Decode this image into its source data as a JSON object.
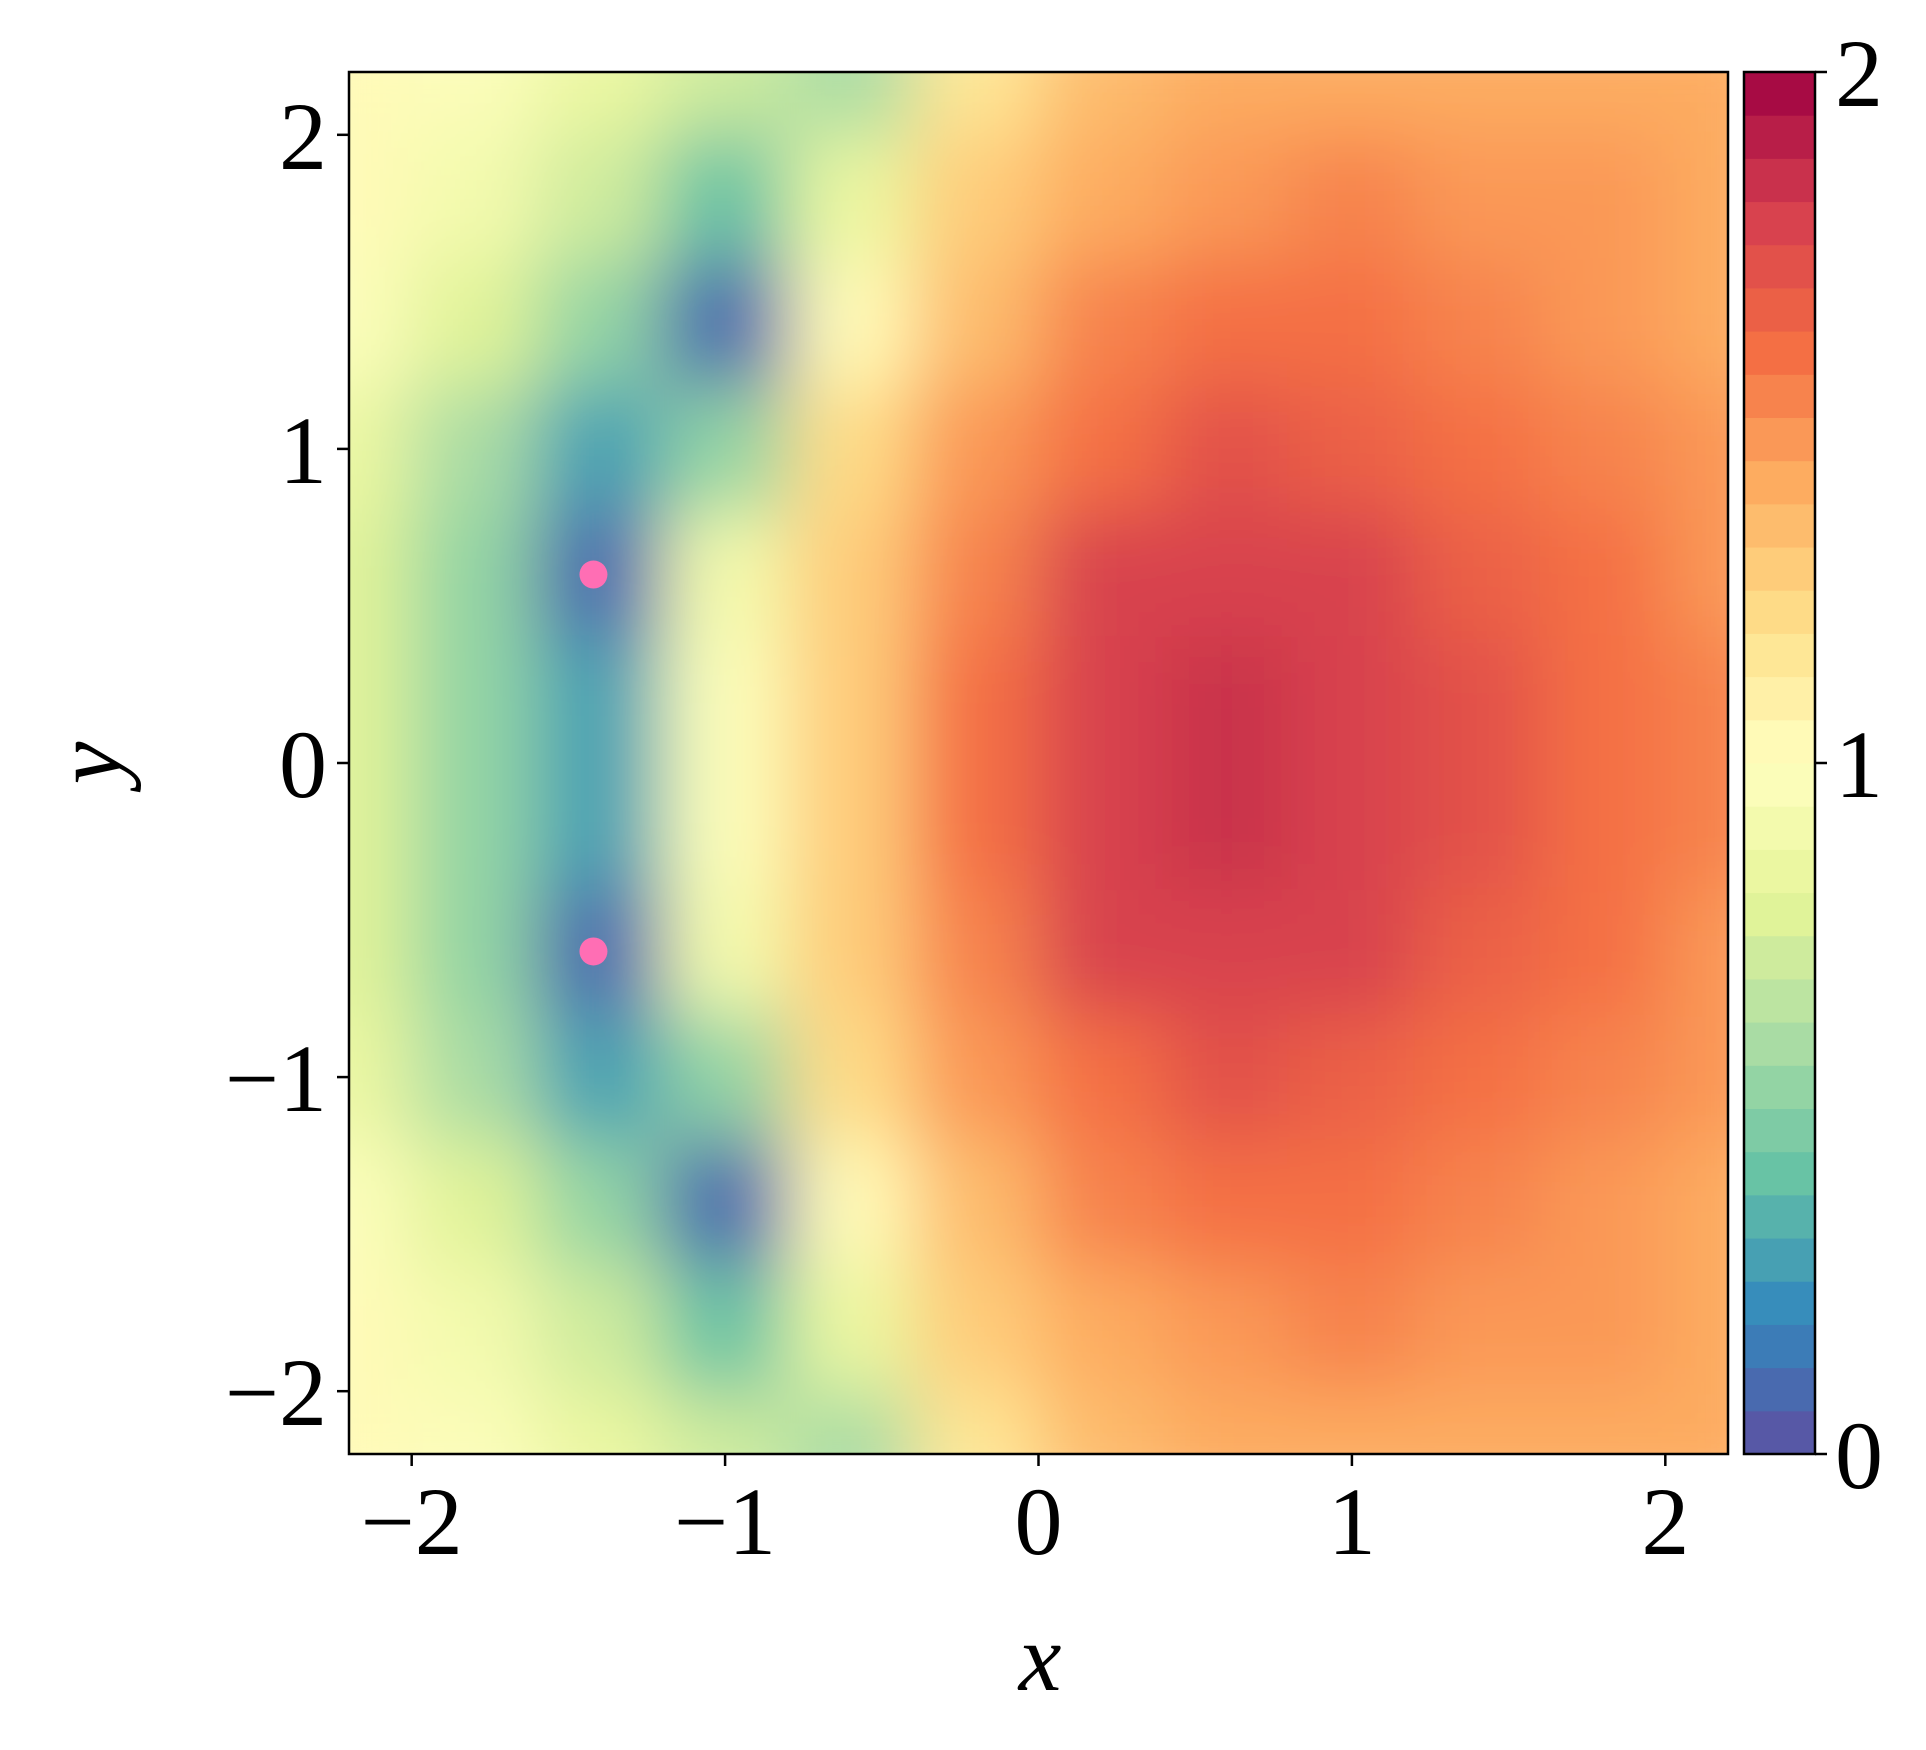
{
  "chart_data": {
    "type": "contour",
    "xlabel": "x",
    "ylabel": "y",
    "xlim": [
      -2.2,
      2.2
    ],
    "ylim": [
      -2.2,
      2.2
    ],
    "xticks": [
      {
        "value": -2,
        "label": "−2"
      },
      {
        "value": -1,
        "label": "−1"
      },
      0,
      1,
      2
    ],
    "yticks": [
      {
        "value": -2,
        "label": "−2"
      },
      {
        "value": -1,
        "label": "−1"
      },
      0,
      1,
      2
    ],
    "x": [
      -2.2,
      -1.8,
      -1.4,
      -1.0,
      -0.6,
      -0.2,
      0.2,
      0.6,
      1.0,
      1.4,
      1.8,
      2.2
    ],
    "y": [
      -2.2,
      -1.8,
      -1.4,
      -1.0,
      -0.6,
      -0.2,
      0.2,
      0.6,
      1.0,
      1.4,
      1.8,
      2.2
    ],
    "z": [
      [
        1.0,
        0.95,
        0.85,
        0.7,
        0.6,
        1.15,
        1.32,
        1.4,
        1.42,
        1.42,
        1.4,
        1.38
      ],
      [
        1.0,
        0.9,
        0.7,
        0.4,
        0.85,
        1.25,
        1.4,
        1.48,
        1.5,
        1.48,
        1.44,
        1.4
      ],
      [
        0.95,
        0.75,
        0.5,
        0.1,
        1.0,
        1.35,
        1.5,
        1.58,
        1.58,
        1.54,
        1.48,
        1.42
      ],
      [
        0.85,
        0.6,
        0.3,
        0.5,
        1.2,
        1.45,
        1.62,
        1.7,
        1.68,
        1.62,
        1.54,
        1.45
      ],
      [
        0.8,
        0.5,
        0.1,
        0.9,
        1.3,
        1.55,
        1.75,
        1.8,
        1.78,
        1.68,
        1.58,
        1.48
      ],
      [
        0.75,
        0.5,
        0.25,
        0.95,
        1.3,
        1.6,
        1.8,
        1.82,
        1.8,
        1.7,
        1.6,
        1.5
      ],
      [
        0.75,
        0.5,
        0.25,
        0.95,
        1.3,
        1.6,
        1.8,
        1.82,
        1.8,
        1.7,
        1.6,
        1.5
      ],
      [
        0.8,
        0.5,
        0.1,
        0.9,
        1.3,
        1.55,
        1.75,
        1.8,
        1.78,
        1.68,
        1.58,
        1.48
      ],
      [
        0.85,
        0.6,
        0.3,
        0.5,
        1.2,
        1.45,
        1.62,
        1.7,
        1.68,
        1.62,
        1.54,
        1.45
      ],
      [
        0.95,
        0.75,
        0.5,
        0.1,
        1.0,
        1.35,
        1.5,
        1.58,
        1.58,
        1.54,
        1.48,
        1.42
      ],
      [
        1.0,
        0.9,
        0.7,
        0.4,
        0.85,
        1.25,
        1.4,
        1.48,
        1.5,
        1.48,
        1.44,
        1.4
      ],
      [
        1.0,
        0.95,
        0.85,
        0.7,
        0.6,
        1.15,
        1.32,
        1.4,
        1.42,
        1.42,
        1.4,
        1.38
      ]
    ],
    "levels": [
      0,
      0.0625,
      0.125,
      0.1875,
      0.25,
      0.3125,
      0.375,
      0.4375,
      0.5,
      0.5625,
      0.625,
      0.6875,
      0.75,
      0.8125,
      0.875,
      0.9375,
      1,
      1.0625,
      1.125,
      1.1875,
      1.25,
      1.3125,
      1.375,
      1.4375,
      1.5,
      1.5625,
      1.625,
      1.6875,
      1.75,
      1.8125,
      1.875,
      1.9375,
      2
    ],
    "colormap": [
      "#5e4fa2",
      "#3288bd",
      "#66c2a5",
      "#abdda4",
      "#e6f598",
      "#ffffbf",
      "#fee08b",
      "#fdae61",
      "#f46d43",
      "#d53e4f",
      "#9e0142"
    ],
    "colorbar_ticks": [
      0,
      1,
      2
    ],
    "points": {
      "x": [
        -1.42,
        -1.42
      ],
      "y": [
        0.6,
        -0.6
      ],
      "color": "#ff6eb4"
    }
  }
}
